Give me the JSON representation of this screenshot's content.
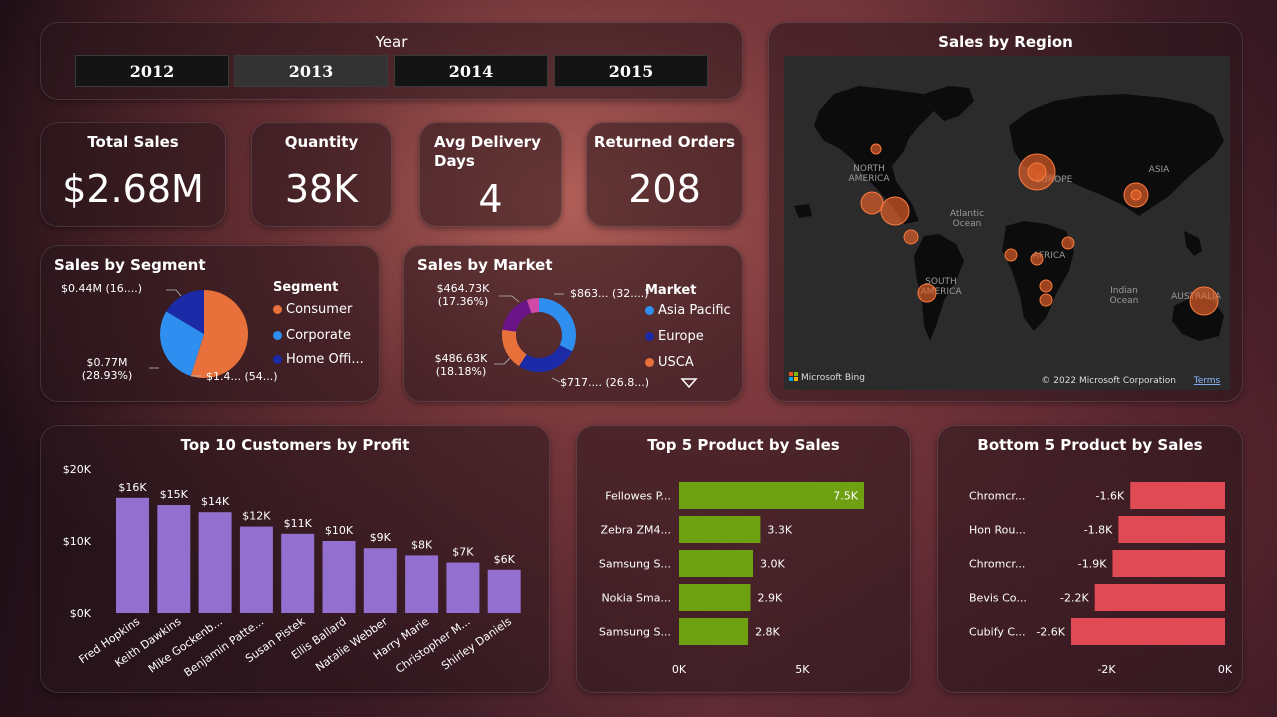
{
  "year_slicer": {
    "title": "Year",
    "options": [
      {
        "label": "2012",
        "selected": false
      },
      {
        "label": "2013",
        "selected": true
      },
      {
        "label": "2014",
        "selected": false
      },
      {
        "label": "2015",
        "selected": false
      }
    ]
  },
  "kpis": {
    "total_sales": {
      "label": "Total Sales",
      "value": "$2.68M"
    },
    "quantity": {
      "label": "Quantity",
      "value": "38K"
    },
    "avg_delivery": {
      "label": "Avg Delivery Days",
      "value": "4"
    },
    "returned": {
      "label": "Returned Orders",
      "value": "208"
    }
  },
  "map": {
    "title": "Sales by Region",
    "labels": {
      "north_america": "NORTH AMERICA",
      "europe": "EUROPE",
      "asia": "ASIA",
      "atlantic": "Atlantic Ocean",
      "africa": "AFRICA",
      "south_america": "SOUTH AMERICA",
      "indian": "Indian Ocean",
      "australia": "AUSTRALIA"
    },
    "attribution": "Microsoft Bing",
    "copyright": "© 2022 Microsoft Corporation",
    "terms": "Terms",
    "colors": {
      "bubble": "#e8622a",
      "land": "#0c0c0c",
      "water": "#2b2b2b"
    }
  },
  "chart_data": [
    {
      "id": "segment",
      "type": "pie",
      "title": "Sales by Segment",
      "legend_title": "Segment",
      "slices": [
        {
          "name": "Consumer",
          "value": 1.47,
          "color": "#e8703a",
          "label": "$1.4... (54...)"
        },
        {
          "name": "Corporate",
          "value": 0.77,
          "color": "#2e8ff0",
          "label": "$0.77M (28.93%)"
        },
        {
          "name": "Home Offi...",
          "value": 0.44,
          "color": "#1b2aa6",
          "label": "$0.44M (16....)"
        }
      ]
    },
    {
      "id": "market",
      "type": "pie",
      "subtype": "donut",
      "title": "Sales by Market",
      "legend_title": "Market",
      "slices": [
        {
          "name": "Asia Pacific",
          "value": 863,
          "color": "#2e8ff0",
          "label": "$863... (32....)"
        },
        {
          "name": "Europe",
          "value": 717,
          "color": "#1b2aa6",
          "label": "$717.... (26.8...)"
        },
        {
          "name": "USCA",
          "value": 486.63,
          "color": "#e8703a",
          "label": "$486.63K (18.18%)"
        },
        {
          "name": "",
          "value": 464.73,
          "color": "#6a1488",
          "label": "$464.73K (17.36%)"
        },
        {
          "name": "",
          "value": 142,
          "color": "#d14aa8",
          "label": ""
        }
      ]
    },
    {
      "id": "customers",
      "type": "bar",
      "title": "Top 10 Customers by Profit",
      "categories": [
        "Fred Hopkins",
        "Keith Dawkins",
        "Mike Gockenb...",
        "Benjamin Patte...",
        "Susan Pistek",
        "Ellis Ballard",
        "Natalie Webber",
        "Harry Marie",
        "Christopher M...",
        "Shirley Daniels"
      ],
      "values": [
        16,
        15,
        14,
        12,
        11,
        10,
        9,
        8,
        7,
        6
      ],
      "data_labels": [
        "$16K",
        "$15K",
        "$14K",
        "$12K",
        "$11K",
        "$10K",
        "$9K",
        "$8K",
        "$7K",
        "$6K"
      ],
      "yticks": [
        "$0K",
        "$10K",
        "$20K"
      ],
      "ylim": [
        0,
        20
      ],
      "color": "#9370d0"
    },
    {
      "id": "top5",
      "type": "bar",
      "orientation": "horizontal",
      "title": "Top 5 Product by Sales",
      "categories": [
        "Fellowes P...",
        "Zebra ZM4...",
        "Samsung S...",
        "Nokia Sma...",
        "Samsung S..."
      ],
      "values": [
        7.5,
        3.3,
        3.0,
        2.9,
        2.8
      ],
      "data_labels": [
        "7.5K",
        "3.3K",
        "3.0K",
        "2.9K",
        "2.8K"
      ],
      "xticks": [
        "0K",
        "5K"
      ],
      "xlim": [
        0,
        7.5
      ],
      "color": "#6fa012"
    },
    {
      "id": "bottom5",
      "type": "bar",
      "orientation": "horizontal",
      "title": "Bottom 5 Product by Sales",
      "categories": [
        "Chromcr...",
        "Hon Rou...",
        "Chromcr...",
        "Bevis Co...",
        "Cubify C..."
      ],
      "values": [
        -1.6,
        -1.8,
        -1.9,
        -2.2,
        -2.6
      ],
      "data_labels": [
        "-1.6K",
        "-1.8K",
        "-1.9K",
        "-2.2K",
        "-2.6K"
      ],
      "xticks": [
        "-2K",
        "0K"
      ],
      "xlim": [
        -2.6,
        0
      ],
      "color": "#e04a55"
    }
  ]
}
